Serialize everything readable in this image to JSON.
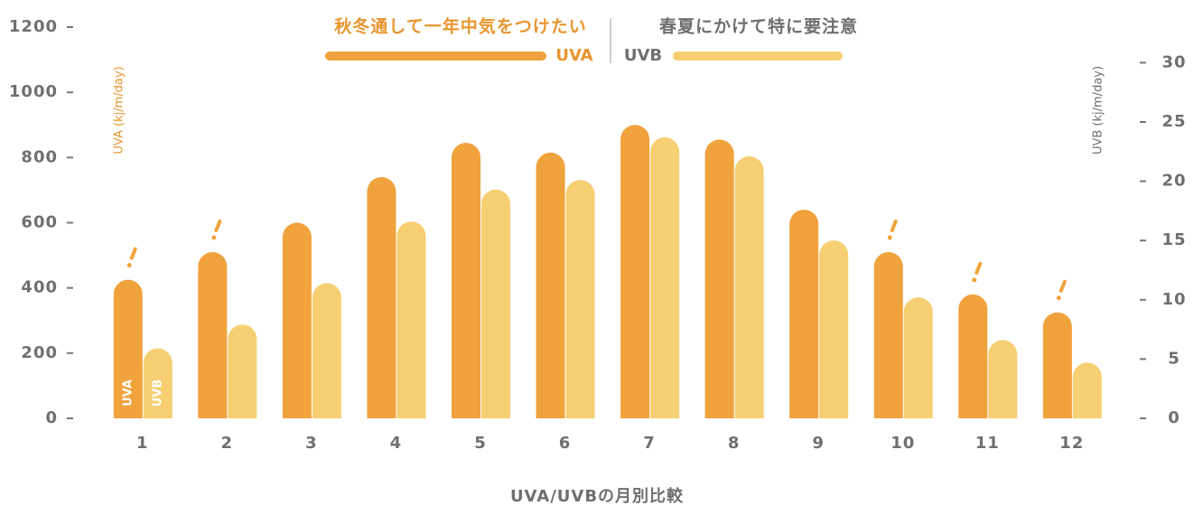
{
  "chart_data": {
    "type": "bar",
    "legend_notes": [
      "秋冬通して一年中気をつけたい",
      "春夏にかけて特に要注意"
    ],
    "categories": [
      "1",
      "2",
      "3",
      "4",
      "5",
      "6",
      "7",
      "8",
      "9",
      "10",
      "11",
      "12"
    ],
    "series": [
      {
        "name": "UVA",
        "color": "#f0a23c",
        "values": [
          425,
          510,
          600,
          740,
          845,
          815,
          900,
          855,
          640,
          510,
          380,
          325
        ]
      },
      {
        "name": "UVB",
        "color": "#f5cf72",
        "axis": "y2",
        "values": [
          5.9,
          7.9,
          11.4,
          16.6,
          19.3,
          20.1,
          23.7,
          22.1,
          15.0,
          10.2,
          6.6,
          4.7
        ]
      }
    ],
    "ylabel": "UVA (kj/m/day)",
    "y2label": "UVB (kj/m/day)",
    "xlabel": "UVA/UVBの月別比較",
    "ylim": [
      0,
      1200
    ],
    "yticks": [
      0,
      200,
      400,
      600,
      800,
      1000,
      1200
    ],
    "y2lim": [
      0,
      33
    ],
    "y2ticks": [
      0,
      5,
      10,
      15,
      20,
      25,
      30
    ]
  }
}
